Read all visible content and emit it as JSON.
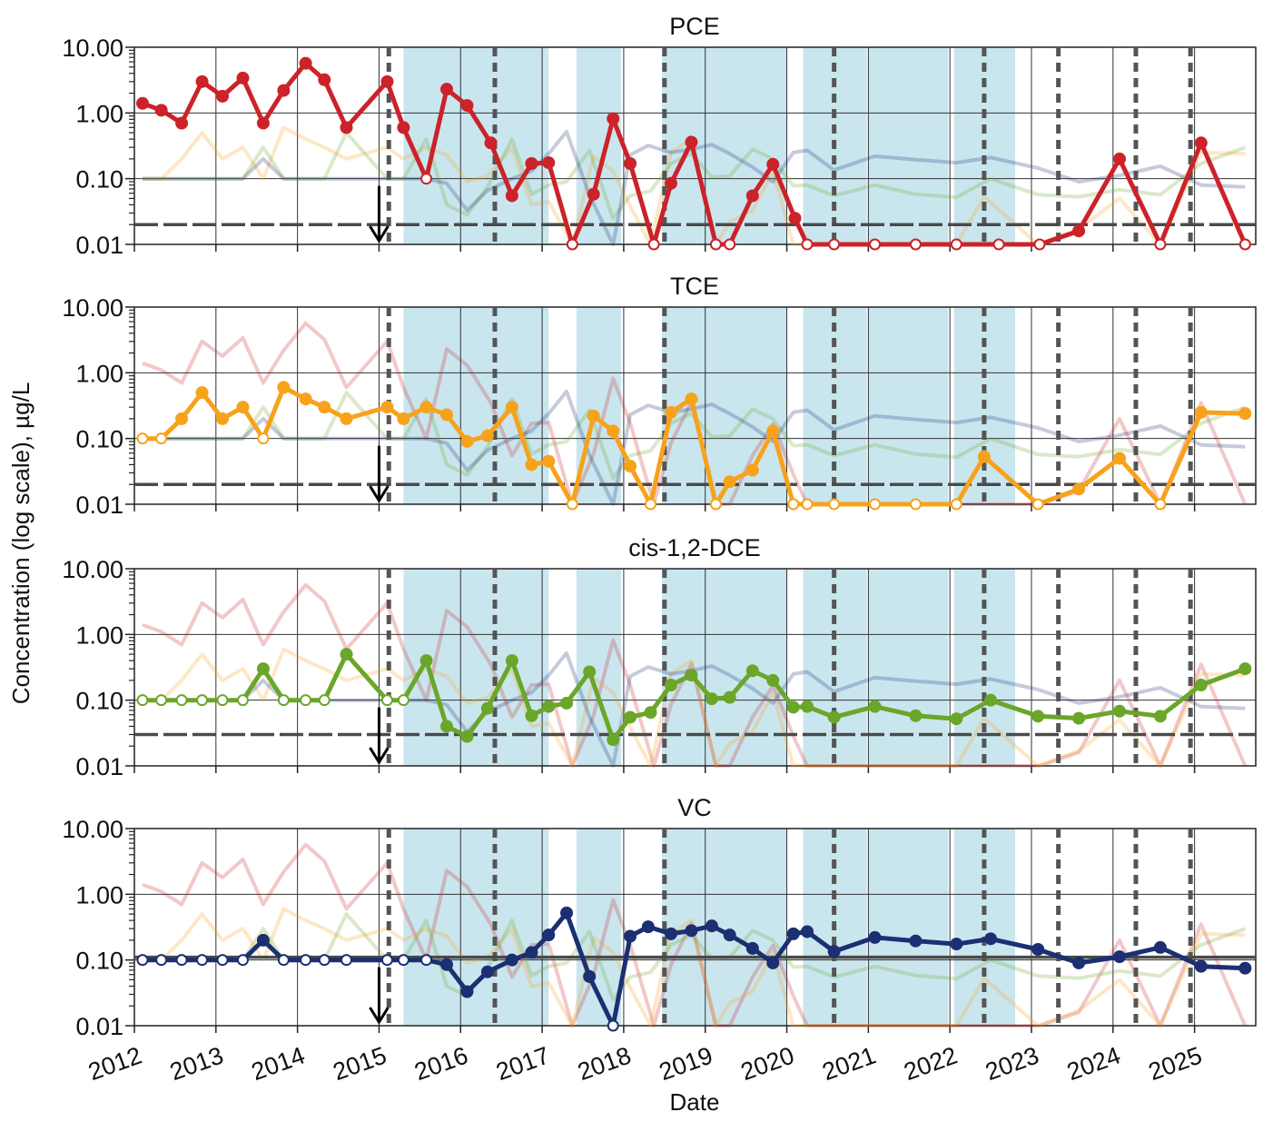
{
  "figure": {
    "ylabel": "Concentration (log scale), µg/L",
    "xlabel": "Date"
  },
  "chart_data": {
    "type": "line",
    "y_scale": "log",
    "ylim": [
      0.01,
      10
    ],
    "xlim": [
      2012.0,
      2025.75
    ],
    "y_ticks": [
      {
        "value": 0.01,
        "label": "0.01"
      },
      {
        "value": 0.1,
        "label": "0.10"
      },
      {
        "value": 1,
        "label": "1.00"
      },
      {
        "value": 10,
        "label": "10.00"
      }
    ],
    "x_ticks": [
      {
        "value": 2012,
        "label": "2012"
      },
      {
        "value": 2013,
        "label": "2013"
      },
      {
        "value": 2014,
        "label": "2014"
      },
      {
        "value": 2015,
        "label": "2015"
      },
      {
        "value": 2016,
        "label": "2016"
      },
      {
        "value": 2017,
        "label": "2017"
      },
      {
        "value": 2018,
        "label": "2018"
      },
      {
        "value": 2019,
        "label": "2019"
      },
      {
        "value": 2020,
        "label": "2020"
      },
      {
        "value": 2021,
        "label": "2021"
      },
      {
        "value": 2022,
        "label": "2022"
      },
      {
        "value": 2023,
        "label": "2023"
      },
      {
        "value": 2024,
        "label": "2024"
      },
      {
        "value": 2025,
        "label": "2025"
      }
    ],
    "grid": true,
    "shaded_periods": [
      [
        2015.3,
        2017.08
      ],
      [
        2017.42,
        2017.97
      ],
      [
        2018.47,
        2020.0
      ],
      [
        2020.2,
        2020.98
      ],
      [
        2021.0,
        2021.98
      ],
      [
        2022.05,
        2022.8
      ]
    ],
    "event_lines_dotted": [
      2015.12,
      2016.42,
      2018.5,
      2020.58,
      2022.42,
      2023.33,
      2024.28,
      2024.95
    ],
    "arrow_x": 2015.0,
    "colors": {
      "PCE": "#cc2229",
      "TCE": "#f7a21b",
      "cis-1,2-DCE": "#6aa629",
      "VC": "#1b2f72",
      "shade": "#c9e6ef",
      "reference": "#4a4a4a"
    },
    "panels": [
      {
        "title": "PCE",
        "series": "PCE",
        "reference_line": 0.02
      },
      {
        "title": "TCE",
        "series": "TCE",
        "reference_line": 0.02
      },
      {
        "title": "cis-1,2-DCE",
        "series": "cis-1,2-DCE",
        "reference_line": 0.03
      },
      {
        "title": "VC",
        "series": "VC",
        "reference_line": 0.11
      }
    ],
    "series": [
      {
        "key": "PCE",
        "x": [
          2012.1,
          2012.33,
          2012.58,
          2012.83,
          2013.08,
          2013.33,
          2013.58,
          2013.83,
          2014.1,
          2014.33,
          2014.6,
          2015.1,
          2015.3,
          2015.58,
          2015.83,
          2016.08,
          2016.37,
          2016.63,
          2016.87,
          2017.08,
          2017.37,
          2017.63,
          2017.87,
          2018.08,
          2018.37,
          2018.58,
          2018.83,
          2019.13,
          2019.3,
          2019.58,
          2019.83,
          2020.1,
          2020.25,
          2020.58,
          2021.08,
          2021.58,
          2022.08,
          2022.6,
          2023.1,
          2023.58,
          2024.08,
          2024.58,
          2025.08,
          2025.62
        ],
        "y": [
          1.4,
          1.1,
          0.7,
          3.0,
          1.8,
          3.4,
          0.7,
          2.2,
          5.7,
          3.2,
          0.6,
          3.0,
          0.6,
          0.1,
          2.3,
          1.3,
          0.35,
          0.055,
          0.17,
          0.175,
          0.01,
          0.058,
          0.82,
          0.17,
          0.01,
          0.085,
          0.36,
          0.01,
          0.01,
          0.055,
          0.165,
          0.025,
          0.01,
          0.01,
          0.01,
          0.01,
          0.01,
          0.01,
          0.01,
          0.016,
          0.2,
          0.01,
          0.35,
          0.01
        ],
        "nondetect": [
          false,
          false,
          false,
          false,
          false,
          false,
          false,
          false,
          false,
          false,
          false,
          false,
          false,
          true,
          false,
          false,
          false,
          false,
          false,
          false,
          true,
          false,
          false,
          false,
          true,
          false,
          false,
          true,
          true,
          false,
          false,
          false,
          true,
          true,
          true,
          true,
          true,
          true,
          true,
          false,
          false,
          true,
          false,
          true
        ]
      },
      {
        "key": "TCE",
        "x": [
          2012.1,
          2012.33,
          2012.58,
          2012.83,
          2013.08,
          2013.33,
          2013.58,
          2013.83,
          2014.1,
          2014.33,
          2014.6,
          2015.1,
          2015.3,
          2015.58,
          2015.83,
          2016.08,
          2016.33,
          2016.63,
          2016.87,
          2017.08,
          2017.37,
          2017.63,
          2017.87,
          2018.08,
          2018.33,
          2018.58,
          2018.83,
          2019.13,
          2019.3,
          2019.58,
          2019.83,
          2020.08,
          2020.25,
          2020.58,
          2021.08,
          2021.58,
          2022.08,
          2022.42,
          2023.08,
          2023.58,
          2024.08,
          2024.58,
          2025.08,
          2025.62
        ],
        "y": [
          0.1,
          0.1,
          0.2,
          0.5,
          0.2,
          0.3,
          0.1,
          0.6,
          0.4,
          0.3,
          0.2,
          0.3,
          0.2,
          0.3,
          0.23,
          0.09,
          0.11,
          0.3,
          0.04,
          0.045,
          0.01,
          0.22,
          0.13,
          0.038,
          0.01,
          0.25,
          0.4,
          0.01,
          0.022,
          0.033,
          0.13,
          0.01,
          0.01,
          0.01,
          0.01,
          0.01,
          0.01,
          0.053,
          0.01,
          0.017,
          0.05,
          0.01,
          0.25,
          0.24
        ],
        "nondetect": [
          true,
          true,
          false,
          false,
          false,
          false,
          true,
          false,
          false,
          false,
          false,
          false,
          false,
          false,
          false,
          false,
          false,
          false,
          false,
          false,
          true,
          false,
          false,
          false,
          true,
          false,
          false,
          true,
          false,
          false,
          false,
          true,
          true,
          true,
          true,
          true,
          true,
          false,
          true,
          false,
          false,
          true,
          false,
          false
        ]
      },
      {
        "key": "cis-1,2-DCE",
        "x": [
          2012.1,
          2012.33,
          2012.58,
          2012.83,
          2013.08,
          2013.33,
          2013.58,
          2013.83,
          2014.1,
          2014.33,
          2014.6,
          2015.1,
          2015.3,
          2015.58,
          2015.83,
          2016.08,
          2016.33,
          2016.63,
          2016.87,
          2017.08,
          2017.3,
          2017.58,
          2017.87,
          2018.08,
          2018.33,
          2018.58,
          2018.83,
          2019.08,
          2019.3,
          2019.58,
          2019.83,
          2020.08,
          2020.25,
          2020.58,
          2021.08,
          2021.58,
          2022.08,
          2022.5,
          2023.08,
          2023.58,
          2024.08,
          2024.58,
          2025.08,
          2025.62
        ],
        "y": [
          0.1,
          0.1,
          0.1,
          0.1,
          0.1,
          0.1,
          0.3,
          0.1,
          0.1,
          0.1,
          0.5,
          0.1,
          0.1,
          0.4,
          0.04,
          0.028,
          0.075,
          0.4,
          0.058,
          0.08,
          0.09,
          0.27,
          0.025,
          0.055,
          0.065,
          0.17,
          0.24,
          0.105,
          0.11,
          0.28,
          0.2,
          0.078,
          0.08,
          0.055,
          0.08,
          0.058,
          0.052,
          0.1,
          0.057,
          0.053,
          0.068,
          0.057,
          0.17,
          0.3
        ],
        "nondetect": [
          true,
          true,
          true,
          true,
          true,
          true,
          false,
          true,
          true,
          true,
          false,
          true,
          true,
          false,
          false,
          false,
          false,
          false,
          false,
          false,
          false,
          false,
          false,
          false,
          false,
          false,
          false,
          false,
          false,
          false,
          false,
          false,
          false,
          false,
          false,
          false,
          false,
          false,
          false,
          false,
          false,
          false,
          false,
          false
        ]
      },
      {
        "key": "VC",
        "x": [
          2012.1,
          2012.33,
          2012.58,
          2012.83,
          2013.08,
          2013.33,
          2013.58,
          2013.83,
          2014.1,
          2014.33,
          2014.6,
          2015.1,
          2015.3,
          2015.58,
          2015.83,
          2016.08,
          2016.33,
          2016.63,
          2016.87,
          2017.08,
          2017.3,
          2017.58,
          2017.87,
          2018.08,
          2018.3,
          2018.58,
          2018.83,
          2019.08,
          2019.3,
          2019.58,
          2019.83,
          2020.08,
          2020.25,
          2020.58,
          2021.08,
          2021.58,
          2022.08,
          2022.5,
          2023.08,
          2023.58,
          2024.08,
          2024.58,
          2025.08,
          2025.62
        ],
        "y": [
          0.1,
          0.1,
          0.1,
          0.1,
          0.1,
          0.1,
          0.2,
          0.1,
          0.1,
          0.1,
          0.1,
          0.1,
          0.1,
          0.1,
          0.085,
          0.033,
          0.066,
          0.1,
          0.13,
          0.24,
          0.52,
          0.056,
          0.01,
          0.23,
          0.32,
          0.25,
          0.28,
          0.33,
          0.24,
          0.15,
          0.09,
          0.25,
          0.27,
          0.135,
          0.22,
          0.195,
          0.175,
          0.21,
          0.145,
          0.09,
          0.112,
          0.155,
          0.08,
          0.075
        ],
        "nondetect": [
          true,
          true,
          true,
          true,
          true,
          true,
          false,
          true,
          true,
          true,
          true,
          true,
          true,
          true,
          false,
          false,
          false,
          false,
          false,
          false,
          false,
          false,
          true,
          false,
          false,
          false,
          false,
          false,
          false,
          false,
          false,
          false,
          false,
          false,
          false,
          false,
          false,
          false,
          false,
          false,
          false,
          false,
          false,
          false
        ]
      }
    ]
  }
}
